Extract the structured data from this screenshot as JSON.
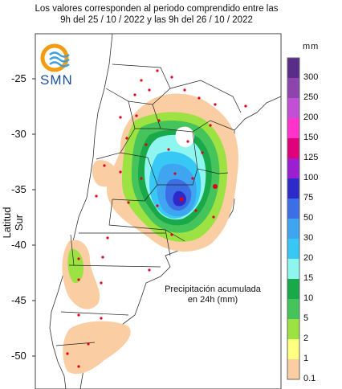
{
  "title_lines": [
    "Los valores corresponden al periodo comprendido entre las",
    "9h del 25 / 10 / 2022  y las 9h del 26 / 10 / 2022"
  ],
  "logo_text": "SMN",
  "y_axis": {
    "label": "Latitud Sur",
    "ticks": [
      "-25",
      "-30",
      "-35",
      "-40",
      "-45",
      "-50"
    ]
  },
  "legend": {
    "unit": "mm",
    "labels": [
      "300",
      "250",
      "200",
      "150",
      "125",
      "100",
      "75",
      "50",
      "30",
      "20",
      "15",
      "10",
      "5",
      "2",
      "1",
      "0.1"
    ],
    "colors": [
      "#5a2c8a",
      "#8e44ad",
      "#c24fd6",
      "#ff33cc",
      "#e0007a",
      "#9b1fd1",
      "#2d2acb",
      "#3c6fe6",
      "#3fa5f0",
      "#38c8f5",
      "#8ef6ee",
      "#19a84a",
      "#44c45b",
      "#9be242",
      "#ffff80",
      "#fbcda3"
    ]
  },
  "annotation": "Precipitación acumulada en 24h (mm)"
}
